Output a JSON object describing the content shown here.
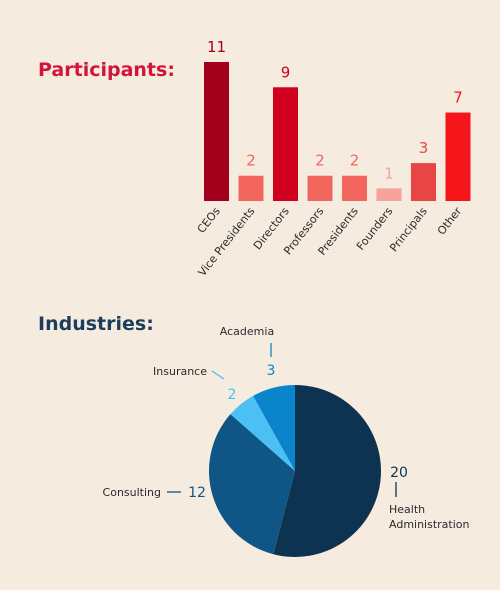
{
  "chart_data": [
    {
      "type": "bar",
      "title": "Participants:",
      "categories": [
        "CEOs",
        "Vice Presidents",
        "Directors",
        "Professors",
        "Presidents",
        "Founders",
        "Principals",
        "Other"
      ],
      "values": [
        11,
        2,
        9,
        2,
        2,
        1,
        3,
        7
      ],
      "colors": [
        "#a3001e",
        "#f2665e",
        "#d1001f",
        "#f2665e",
        "#f2665e",
        "#f7a29a",
        "#e84545",
        "#f5161c"
      ],
      "value_label_colors": [
        "#a3001e",
        "#f2665e",
        "#d1001f",
        "#f2665e",
        "#f2665e",
        "#f7a29a",
        "#e84545",
        "#f5161c"
      ],
      "title_color": "#d3143b",
      "ylim": [
        0,
        11
      ],
      "grid": false
    },
    {
      "type": "pie",
      "title": "Industries:",
      "title_color": "#1d3d5c",
      "slices": [
        {
          "label": "Health Administration",
          "value": 20,
          "color": "#0d3350"
        },
        {
          "label": "Consulting",
          "value": 12,
          "color": "#0f5586"
        },
        {
          "label": "Insurance",
          "value": 2,
          "color": "#4cc0f5"
        },
        {
          "label": "Academia",
          "value": 3,
          "color": "#0a85cc"
        }
      ],
      "value_colors": [
        "#0d3350",
        "#0f5586",
        "#4cc0f5",
        "#0a85cc"
      ]
    }
  ]
}
